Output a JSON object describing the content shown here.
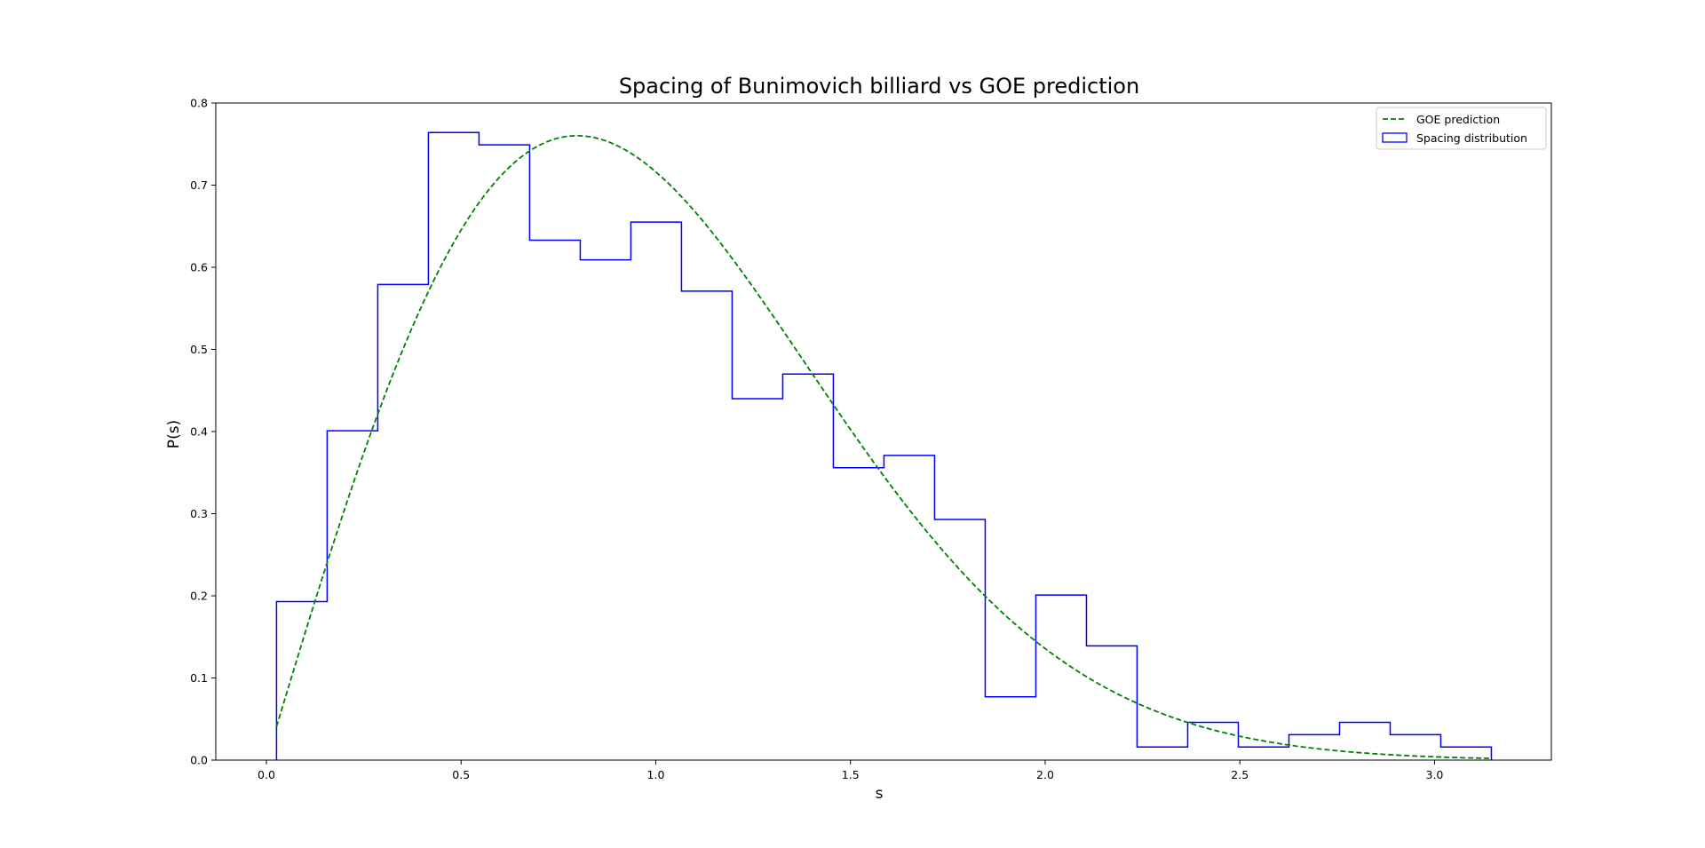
{
  "chart_data": {
    "type": "histogram+line",
    "title": "Spacing of Bunimovich billiard vs GOE prediction",
    "xlabel": "s",
    "ylabel": "P(s)",
    "xlim": [
      -0.13,
      3.3
    ],
    "ylim": [
      0.0,
      0.8
    ],
    "xticks": [
      "0.0",
      "0.5",
      "1.0",
      "1.5",
      "2.0",
      "2.5",
      "3.0"
    ],
    "xtick_values": [
      0.0,
      0.5,
      1.0,
      1.5,
      2.0,
      2.5,
      3.0
    ],
    "yticks": [
      "0.0",
      "0.1",
      "0.2",
      "0.3",
      "0.4",
      "0.5",
      "0.6",
      "0.7",
      "0.8"
    ],
    "ytick_values": [
      0.0,
      0.1,
      0.2,
      0.3,
      0.4,
      0.5,
      0.6,
      0.7,
      0.8
    ],
    "grid": false,
    "legend_position": "upper-right",
    "series": [
      {
        "name": "GOE prediction",
        "kind": "line",
        "style": "dashed",
        "color": "#008000",
        "formula": "(pi/2) * s * exp(-pi * s^2 / 4)",
        "x_range": [
          0.026,
          3.14
        ]
      },
      {
        "name": "Spacing distribution",
        "kind": "step-histogram",
        "color": "#0000ff",
        "bin_edges": [
          0.026,
          0.156,
          0.286,
          0.416,
          0.546,
          0.676,
          0.806,
          0.936,
          1.066,
          1.196,
          1.326,
          1.456,
          1.586,
          1.716,
          1.846,
          1.976,
          2.106,
          2.236,
          2.366,
          2.496,
          2.626,
          2.756,
          2.886,
          3.016,
          3.146
        ],
        "values": [
          0.193,
          0.401,
          0.579,
          0.764,
          0.749,
          0.633,
          0.609,
          0.655,
          0.571,
          0.44,
          0.47,
          0.356,
          0.371,
          0.293,
          0.077,
          0.201,
          0.139,
          0.016,
          0.046,
          0.016,
          0.031,
          0.046,
          0.031,
          0.016
        ]
      }
    ]
  }
}
